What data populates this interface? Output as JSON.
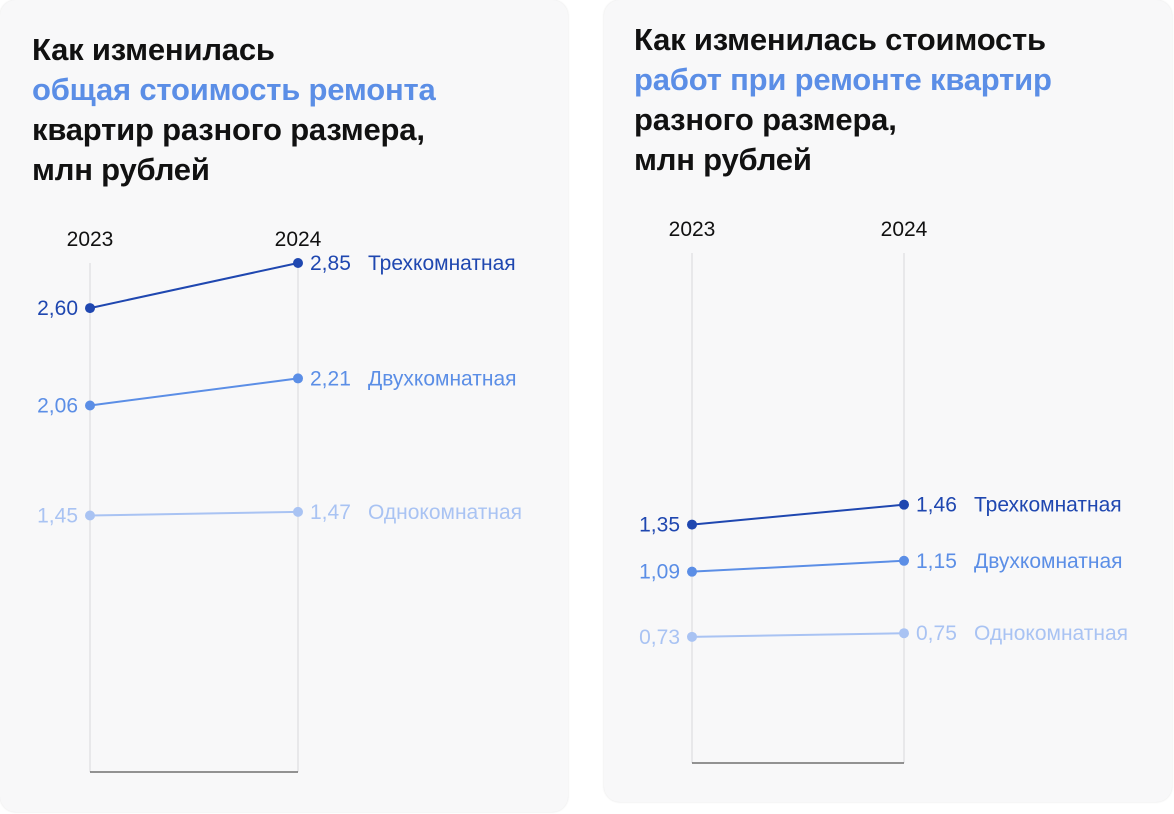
{
  "chart_data": [
    {
      "type": "line",
      "title_parts": [
        "Как изменилась",
        "общая стоимость ремонта",
        "квартир разного размера,",
        "млн рублей"
      ],
      "categories": [
        "2023",
        "2024"
      ],
      "ylim": [
        0,
        2.85
      ],
      "grid": false,
      "series": [
        {
          "name": "Трехкомнатная",
          "values": [
            2.6,
            2.85
          ],
          "labels": [
            "2,60",
            "2,85"
          ],
          "color": "#1f47b0"
        },
        {
          "name": "Двухкомнатная",
          "values": [
            2.06,
            2.21
          ],
          "labels": [
            "2,06",
            "2,21"
          ],
          "color": "#5b8ee6"
        },
        {
          "name": "Однокомнатная",
          "values": [
            1.45,
            1.47
          ],
          "labels": [
            "1,45",
            "1,47"
          ],
          "color": "#a9c3f3"
        }
      ]
    },
    {
      "type": "line",
      "title_parts": [
        "Как изменилась стоимость",
        "работ при ремонте квартир",
        "разного размера,",
        "млн рублей"
      ],
      "categories": [
        "2023",
        "2024"
      ],
      "ylim": [
        0,
        2.85
      ],
      "grid": false,
      "series": [
        {
          "name": "Трехкомнатная",
          "values": [
            1.35,
            1.46
          ],
          "labels": [
            "1,35",
            "1,46"
          ],
          "color": "#1f47b0"
        },
        {
          "name": "Двухкомнатная",
          "values": [
            1.09,
            1.15
          ],
          "labels": [
            "1,09",
            "1,15"
          ],
          "color": "#5b8ee6"
        },
        {
          "name": "Однокомнатная",
          "values": [
            0.73,
            0.75
          ],
          "labels": [
            "0,73",
            "0,75"
          ],
          "color": "#a9c3f3"
        }
      ]
    }
  ]
}
